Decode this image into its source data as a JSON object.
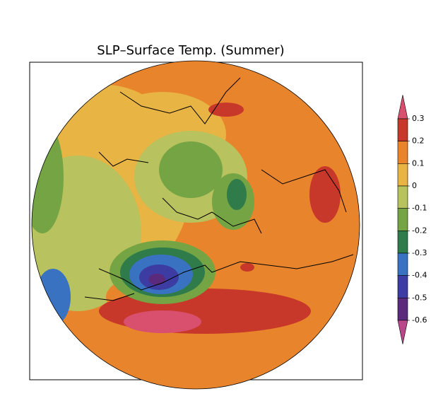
{
  "title": "SLP–Surface Temp. (Summer)",
  "colorbar": {
    "ticks": [
      0.3,
      0.2,
      0.1,
      0,
      -0.1,
      -0.2,
      -0.3,
      -0.4,
      -0.5,
      -0.6
    ],
    "colors": [
      "#d9506e",
      "#c8382a",
      "#e8842c",
      "#e8b444",
      "#b8c25e",
      "#74a443",
      "#2f7c4a",
      "#3a72c2",
      "#3c3ca2",
      "#5c2a7c",
      "#b8488a"
    ]
  }
}
